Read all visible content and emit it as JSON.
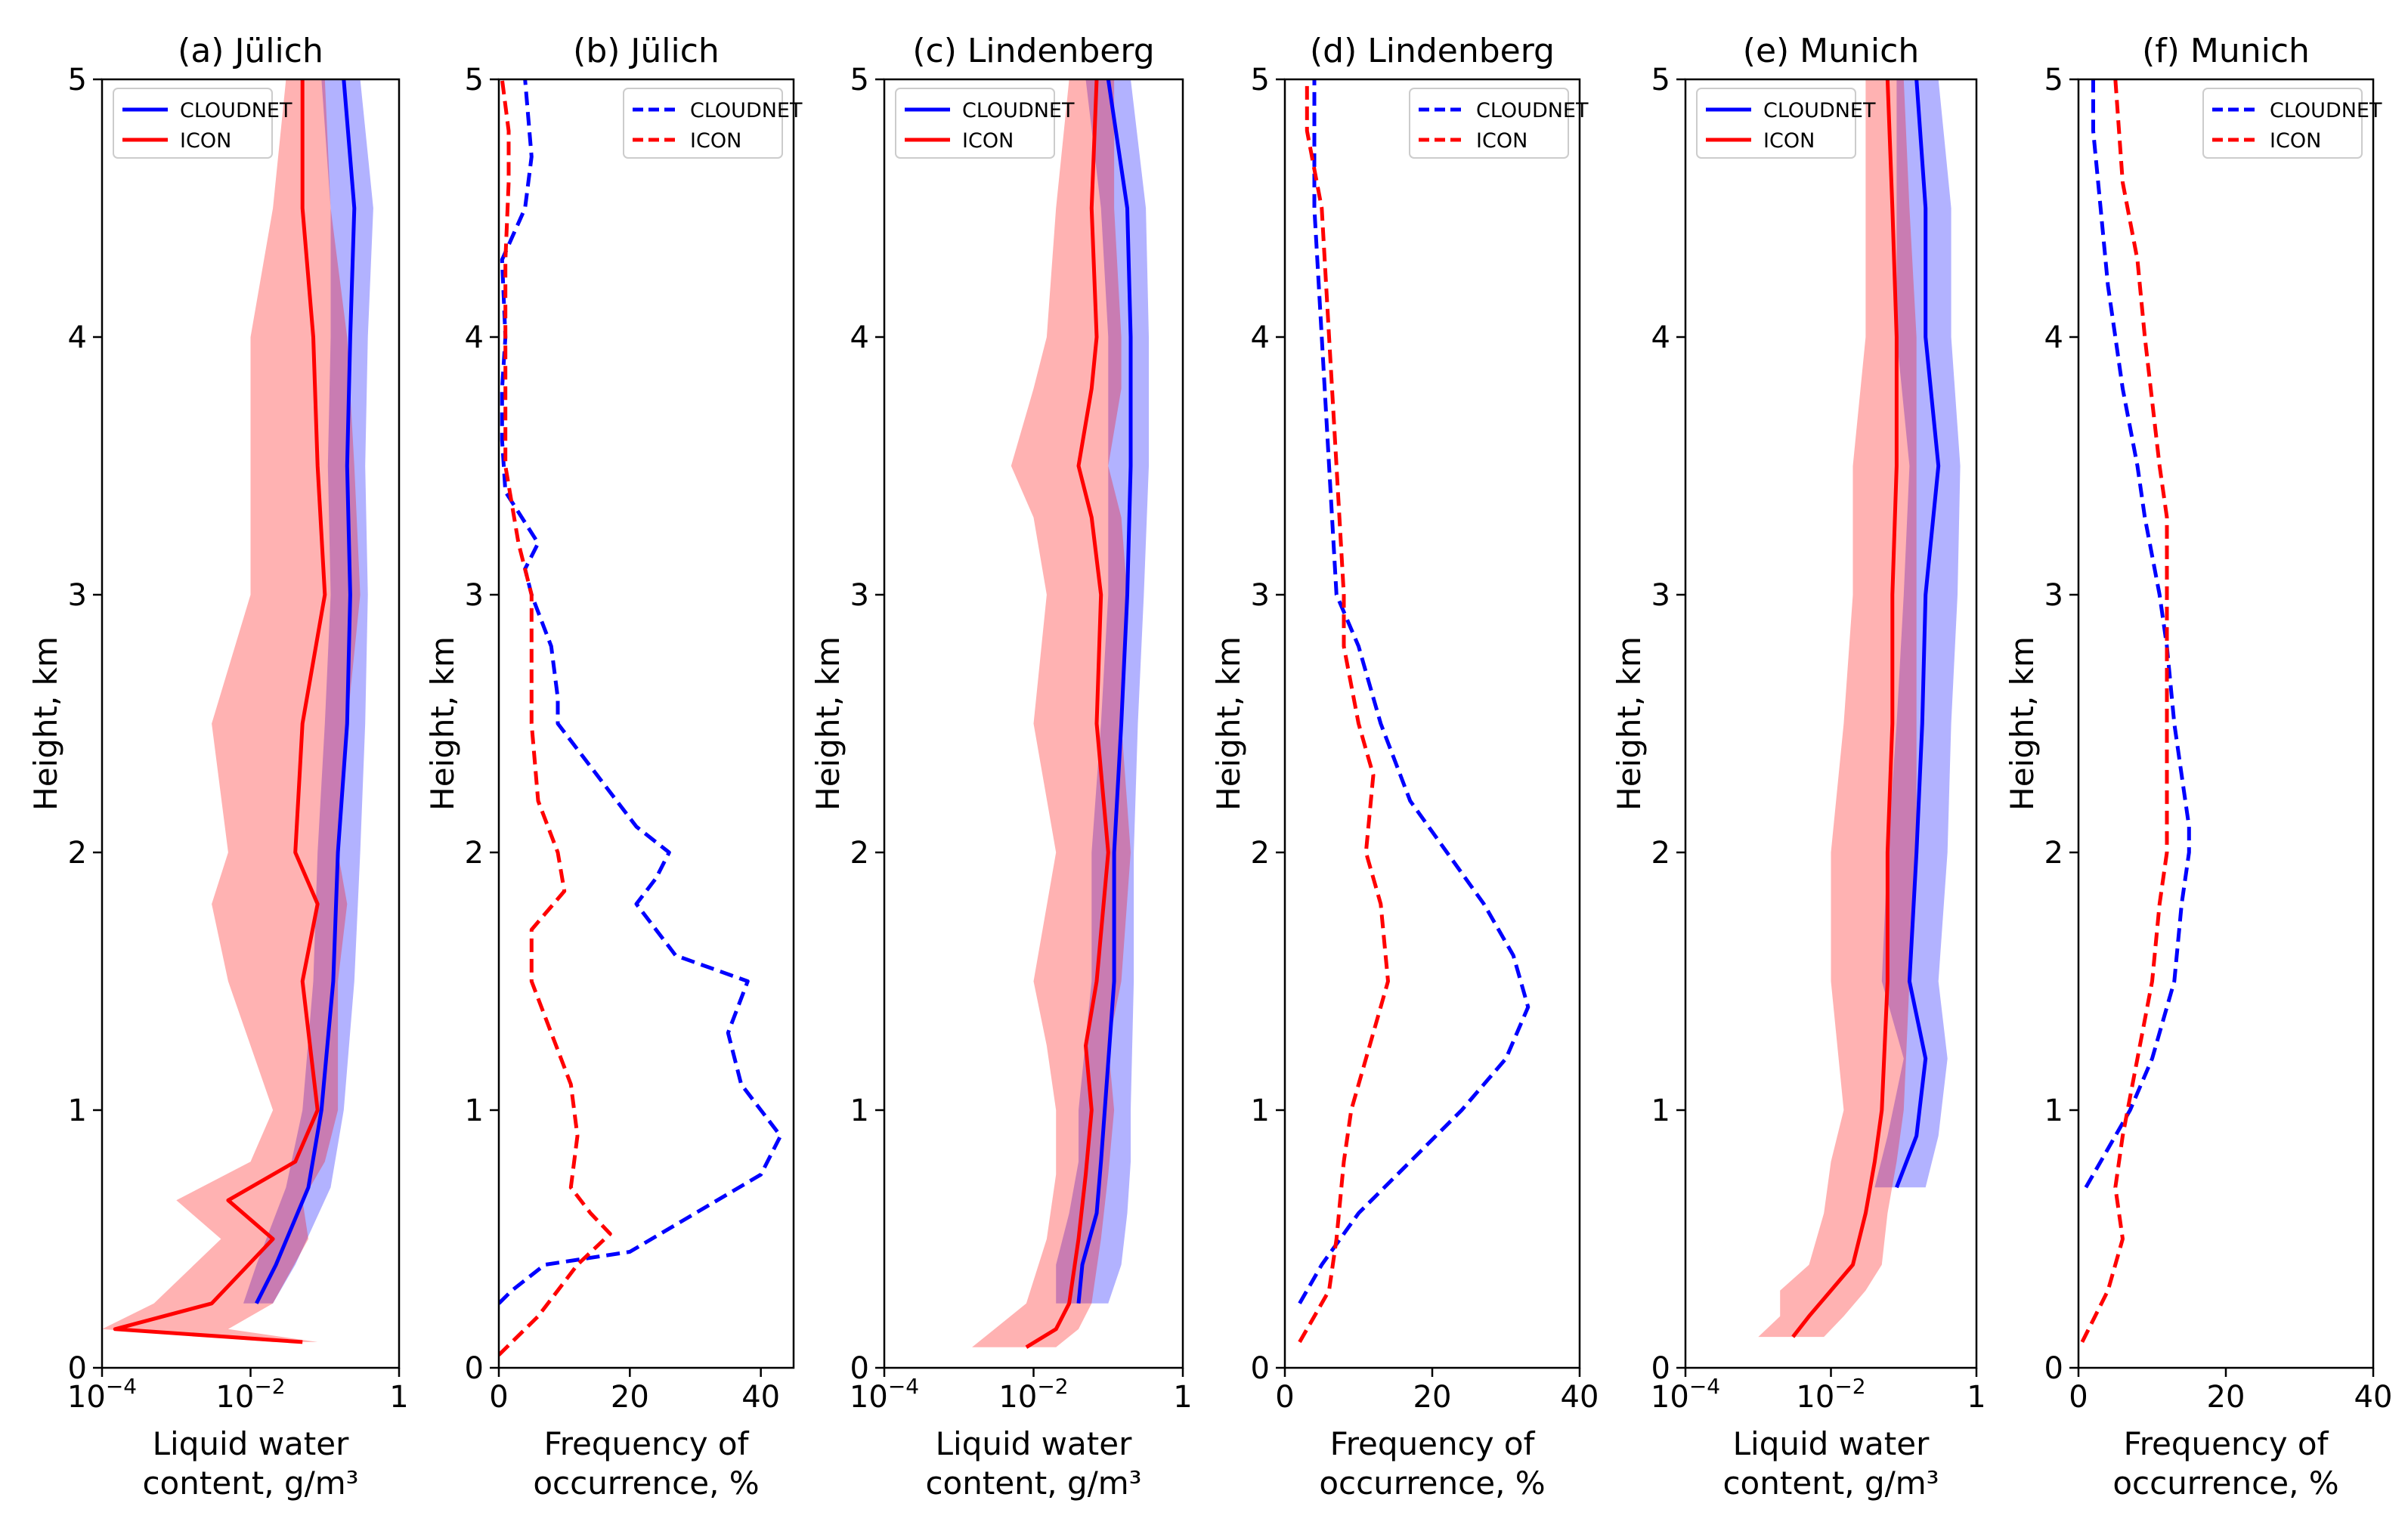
{
  "chart_data": [
    {
      "type": "line",
      "panel": "(a) Jülich",
      "title": "(a) Jülich",
      "xlabel": [
        "Liquid water",
        "content, g/m³"
      ],
      "ylabel": "Height, km",
      "xscale": "log",
      "xlim": [
        0.0001,
        1
      ],
      "ylim": [
        0,
        5
      ],
      "xticks": [
        {
          "v": 0.0001,
          "label": "10",
          "exp": "−4"
        },
        {
          "v": 0.01,
          "label": "10",
          "exp": "−2"
        },
        {
          "v": 1,
          "label": "1",
          "exp": ""
        }
      ],
      "yticks": [
        0,
        1,
        2,
        3,
        4,
        5
      ],
      "legend": "upper-left",
      "series": [
        {
          "name": "CLOUDNET",
          "color": "#0000ff",
          "style": "solid",
          "y": [
            0.25,
            0.4,
            0.7,
            1.0,
            1.5,
            2.0,
            2.5,
            3.0,
            3.5,
            4.0,
            4.5,
            5.0
          ],
          "x": [
            0.012,
            0.022,
            0.06,
            0.09,
            0.13,
            0.15,
            0.2,
            0.22,
            0.2,
            0.22,
            0.25,
            0.18
          ],
          "band_lo": [
            0.008,
            0.012,
            0.03,
            0.05,
            0.07,
            0.08,
            0.1,
            0.12,
            0.11,
            0.12,
            0.12,
            0.09
          ],
          "band_hi": [
            0.02,
            0.04,
            0.12,
            0.18,
            0.25,
            0.3,
            0.35,
            0.38,
            0.35,
            0.38,
            0.45,
            0.3
          ]
        },
        {
          "name": "ICON",
          "color": "#ff0000",
          "style": "solid",
          "y": [
            0.1,
            0.15,
            0.25,
            0.5,
            0.65,
            0.8,
            1.0,
            1.5,
            1.8,
            2.0,
            2.5,
            3.0,
            3.5,
            4.0,
            4.5,
            5.0
          ],
          "x": [
            0.05,
            0.00015,
            0.003,
            0.02,
            0.005,
            0.04,
            0.08,
            0.05,
            0.08,
            0.04,
            0.05,
            0.1,
            0.08,
            0.07,
            0.05,
            0.05
          ],
          "band_lo": [
            0.02,
            0.0001,
            0.0005,
            0.004,
            0.001,
            0.01,
            0.02,
            0.005,
            0.003,
            0.005,
            0.003,
            0.01,
            0.01,
            0.01,
            0.02,
            0.03
          ],
          "band_hi": [
            0.08,
            0.005,
            0.02,
            0.06,
            0.05,
            0.1,
            0.15,
            0.15,
            0.2,
            0.15,
            0.2,
            0.3,
            0.25,
            0.2,
            0.12,
            0.1
          ]
        }
      ]
    },
    {
      "type": "line",
      "panel": "(b) Jülich",
      "title": "(b) Jülich",
      "xlabel": [
        "Frequency of",
        "occurrence, %"
      ],
      "ylabel": "Height, km",
      "xscale": "linear",
      "xlim": [
        0,
        45
      ],
      "ylim": [
        0,
        5
      ],
      "xticks": [
        {
          "v": 0,
          "label": "0"
        },
        {
          "v": 20,
          "label": "20"
        },
        {
          "v": 40,
          "label": "40"
        }
      ],
      "yticks": [
        0,
        1,
        2,
        3,
        4,
        5
      ],
      "legend": "upper-right",
      "series": [
        {
          "name": "CLOUDNET",
          "color": "#0000ff",
          "style": "dashed",
          "y": [
            0.25,
            0.3,
            0.4,
            0.45,
            0.6,
            0.75,
            0.9,
            1.0,
            1.1,
            1.3,
            1.5,
            1.6,
            1.8,
            1.9,
            2.0,
            2.1,
            2.3,
            2.5,
            2.6,
            2.8,
            3.0,
            3.1,
            3.2,
            3.4,
            3.6,
            3.8,
            4.0,
            4.3,
            4.5,
            4.7,
            5.0
          ],
          "x": [
            0,
            2,
            7,
            20,
            30,
            40,
            43,
            40,
            37,
            35,
            38,
            27,
            21,
            24,
            26,
            21,
            15,
            9,
            9,
            8,
            5,
            4,
            6,
            1,
            0.5,
            0.5,
            1,
            0.5,
            4,
            5,
            4
          ]
        },
        {
          "name": "ICON",
          "color": "#ff0000",
          "style": "dashed",
          "y": [
            0.05,
            0.2,
            0.4,
            0.52,
            0.6,
            0.7,
            0.9,
            1.1,
            1.3,
            1.5,
            1.7,
            1.85,
            2.0,
            2.2,
            2.5,
            2.8,
            3.0,
            3.2,
            3.5,
            3.8,
            4.0,
            4.3,
            4.6,
            4.8,
            5.0
          ],
          "x": [
            0,
            6,
            12,
            17,
            14,
            11,
            12,
            11,
            8,
            5,
            5,
            10,
            9,
            6,
            5,
            5,
            5,
            3,
            1,
            1,
            1,
            1,
            1.5,
            1.5,
            0.5
          ]
        }
      ]
    },
    {
      "type": "line",
      "panel": "(c) Lindenberg",
      "title": "(c) Lindenberg",
      "xlabel": [
        "Liquid water",
        "content, g/m³"
      ],
      "ylabel": "Height, km",
      "xscale": "log",
      "xlim": [
        0.0001,
        1
      ],
      "ylim": [
        0,
        5
      ],
      "xticks": [
        {
          "v": 0.0001,
          "label": "10",
          "exp": "−4"
        },
        {
          "v": 0.01,
          "label": "10",
          "exp": "−2"
        },
        {
          "v": 1,
          "label": "1",
          "exp": ""
        }
      ],
      "yticks": [
        0,
        1,
        2,
        3,
        4,
        5
      ],
      "legend": "upper-left",
      "series": [
        {
          "name": "CLOUDNET",
          "color": "#0000ff",
          "style": "solid",
          "y": [
            0.25,
            0.4,
            0.6,
            0.8,
            1.0,
            1.5,
            2.0,
            2.5,
            3.0,
            3.5,
            4.0,
            4.5,
            5.0
          ],
          "x": [
            0.04,
            0.045,
            0.07,
            0.08,
            0.09,
            0.12,
            0.12,
            0.15,
            0.18,
            0.2,
            0.2,
            0.18,
            0.1
          ],
          "band_lo": [
            0.02,
            0.02,
            0.03,
            0.04,
            0.04,
            0.06,
            0.06,
            0.08,
            0.1,
            0.1,
            0.1,
            0.08,
            0.05
          ],
          "band_hi": [
            0.1,
            0.15,
            0.18,
            0.2,
            0.2,
            0.22,
            0.22,
            0.25,
            0.3,
            0.35,
            0.35,
            0.32,
            0.2
          ]
        },
        {
          "name": "ICON",
          "color": "#ff0000",
          "style": "solid",
          "y": [
            0.08,
            0.15,
            0.25,
            0.5,
            0.75,
            1.0,
            1.25,
            1.5,
            2.0,
            2.5,
            3.0,
            3.3,
            3.5,
            3.8,
            4.0,
            4.5,
            5.0
          ],
          "x": [
            0.008,
            0.02,
            0.03,
            0.04,
            0.05,
            0.06,
            0.05,
            0.07,
            0.1,
            0.07,
            0.08,
            0.06,
            0.04,
            0.06,
            0.07,
            0.06,
            0.07
          ],
          "band_lo": [
            0.0015,
            0.003,
            0.008,
            0.015,
            0.02,
            0.02,
            0.015,
            0.01,
            0.02,
            0.01,
            0.015,
            0.01,
            0.005,
            0.01,
            0.015,
            0.02,
            0.03
          ],
          "band_hi": [
            0.02,
            0.04,
            0.06,
            0.08,
            0.1,
            0.12,
            0.1,
            0.15,
            0.2,
            0.15,
            0.18,
            0.15,
            0.1,
            0.15,
            0.15,
            0.12,
            0.12
          ]
        }
      ]
    },
    {
      "type": "line",
      "panel": "(d) Lindenberg",
      "title": "(d) Lindenberg",
      "xlabel": [
        "Frequency of",
        "occurrence, %"
      ],
      "ylabel": "Height, km",
      "xscale": "linear",
      "xlim": [
        0,
        40
      ],
      "ylim": [
        0,
        5
      ],
      "xticks": [
        {
          "v": 0,
          "label": "0"
        },
        {
          "v": 20,
          "label": "20"
        },
        {
          "v": 40,
          "label": "40"
        }
      ],
      "yticks": [
        0,
        1,
        2,
        3,
        4,
        5
      ],
      "legend": "upper-right",
      "series": [
        {
          "name": "CLOUDNET",
          "color": "#0000ff",
          "style": "dashed",
          "y": [
            0.25,
            0.4,
            0.6,
            0.8,
            1.0,
            1.2,
            1.4,
            1.6,
            1.8,
            2.0,
            2.2,
            2.5,
            2.8,
            3.0,
            3.5,
            4.0,
            4.5,
            5.0
          ],
          "x": [
            2,
            5,
            10,
            17,
            24,
            30,
            33,
            31,
            27,
            22,
            17,
            13,
            10,
            7,
            6,
            5,
            4,
            4
          ]
        },
        {
          "name": "ICON",
          "color": "#ff0000",
          "style": "dashed",
          "y": [
            0.1,
            0.3,
            0.5,
            0.8,
            1.0,
            1.2,
            1.5,
            1.8,
            2.0,
            2.3,
            2.5,
            2.8,
            3.0,
            3.5,
            4.0,
            4.5,
            4.8,
            5.0
          ],
          "x": [
            2,
            6,
            7,
            8,
            9,
            11,
            14,
            13,
            11,
            12,
            10,
            8,
            8,
            7,
            6,
            5,
            3,
            3
          ]
        }
      ]
    },
    {
      "type": "line",
      "panel": "(e) Munich",
      "title": "(e) Munich",
      "xlabel": [
        "Liquid water",
        "content, g/m³"
      ],
      "ylabel": "Height, km",
      "xscale": "log",
      "xlim": [
        0.0001,
        1
      ],
      "ylim": [
        0,
        5
      ],
      "xticks": [
        {
          "v": 0.0001,
          "label": "10",
          "exp": "−4"
        },
        {
          "v": 0.01,
          "label": "10",
          "exp": "−2"
        },
        {
          "v": 1,
          "label": "1",
          "exp": ""
        }
      ],
      "yticks": [
        0,
        1,
        2,
        3,
        4,
        5
      ],
      "legend": "upper-left",
      "series": [
        {
          "name": "CLOUDNET",
          "color": "#0000ff",
          "style": "solid",
          "y": [
            0.7,
            0.9,
            1.2,
            1.5,
            2.0,
            2.5,
            3.0,
            3.5,
            4.0,
            4.5,
            5.0
          ],
          "x": [
            0.08,
            0.15,
            0.2,
            0.12,
            0.15,
            0.18,
            0.2,
            0.3,
            0.2,
            0.2,
            0.15
          ],
          "band_lo": [
            0.04,
            0.06,
            0.1,
            0.05,
            0.06,
            0.08,
            0.1,
            0.12,
            0.08,
            0.08,
            0.08
          ],
          "band_hi": [
            0.2,
            0.3,
            0.4,
            0.3,
            0.4,
            0.45,
            0.55,
            0.6,
            0.45,
            0.45,
            0.3
          ]
        },
        {
          "name": "ICON",
          "color": "#ff0000",
          "style": "solid",
          "y": [
            0.12,
            0.2,
            0.3,
            0.4,
            0.6,
            0.8,
            1.0,
            1.5,
            2.0,
            2.5,
            3.0,
            3.5,
            4.0,
            4.5,
            5.0
          ],
          "x": [
            0.003,
            0.005,
            0.01,
            0.02,
            0.03,
            0.04,
            0.05,
            0.06,
            0.06,
            0.07,
            0.07,
            0.08,
            0.08,
            0.07,
            0.06
          ],
          "band_lo": [
            0.001,
            0.002,
            0.002,
            0.005,
            0.008,
            0.01,
            0.015,
            0.01,
            0.01,
            0.015,
            0.02,
            0.02,
            0.03,
            0.03,
            0.03
          ],
          "band_hi": [
            0.008,
            0.015,
            0.03,
            0.05,
            0.06,
            0.08,
            0.1,
            0.12,
            0.15,
            0.15,
            0.15,
            0.15,
            0.15,
            0.12,
            0.1
          ]
        }
      ]
    },
    {
      "type": "line",
      "panel": "(f) Munich",
      "title": "(f) Munich",
      "xlabel": [
        "Frequency of",
        "occurrence, %"
      ],
      "ylabel": "Height, km",
      "xscale": "linear",
      "xlim": [
        0,
        40
      ],
      "ylim": [
        0,
        5
      ],
      "xticks": [
        {
          "v": 0,
          "label": "0"
        },
        {
          "v": 20,
          "label": "20"
        },
        {
          "v": 40,
          "label": "40"
        }
      ],
      "yticks": [
        0,
        1,
        2,
        3,
        4,
        5
      ],
      "legend": "upper-right",
      "series": [
        {
          "name": "CLOUDNET",
          "color": "#0000ff",
          "style": "dashed",
          "y": [
            0.7,
            0.8,
            0.9,
            1.0,
            1.2,
            1.5,
            1.8,
            2.0,
            2.1,
            2.3,
            2.5,
            2.8,
            3.0,
            3.3,
            3.5,
            3.8,
            4.0,
            4.2,
            4.5,
            4.8,
            5.0
          ],
          "x": [
            1,
            3,
            5,
            7,
            10,
            13,
            14,
            15,
            15,
            14,
            13,
            12,
            11,
            9,
            8,
            6,
            5,
            4,
            3,
            2,
            2
          ]
        },
        {
          "name": "ICON",
          "color": "#ff0000",
          "style": "dashed",
          "y": [
            0.1,
            0.3,
            0.5,
            0.7,
            0.9,
            1.2,
            1.5,
            1.8,
            2.0,
            2.5,
            3.0,
            3.3,
            3.5,
            4.0,
            4.3,
            4.6,
            5.0
          ],
          "x": [
            0.5,
            4,
            6,
            5,
            6,
            8,
            10,
            11,
            12,
            12,
            12,
            12,
            11,
            9,
            8,
            6,
            5
          ]
        }
      ]
    }
  ]
}
